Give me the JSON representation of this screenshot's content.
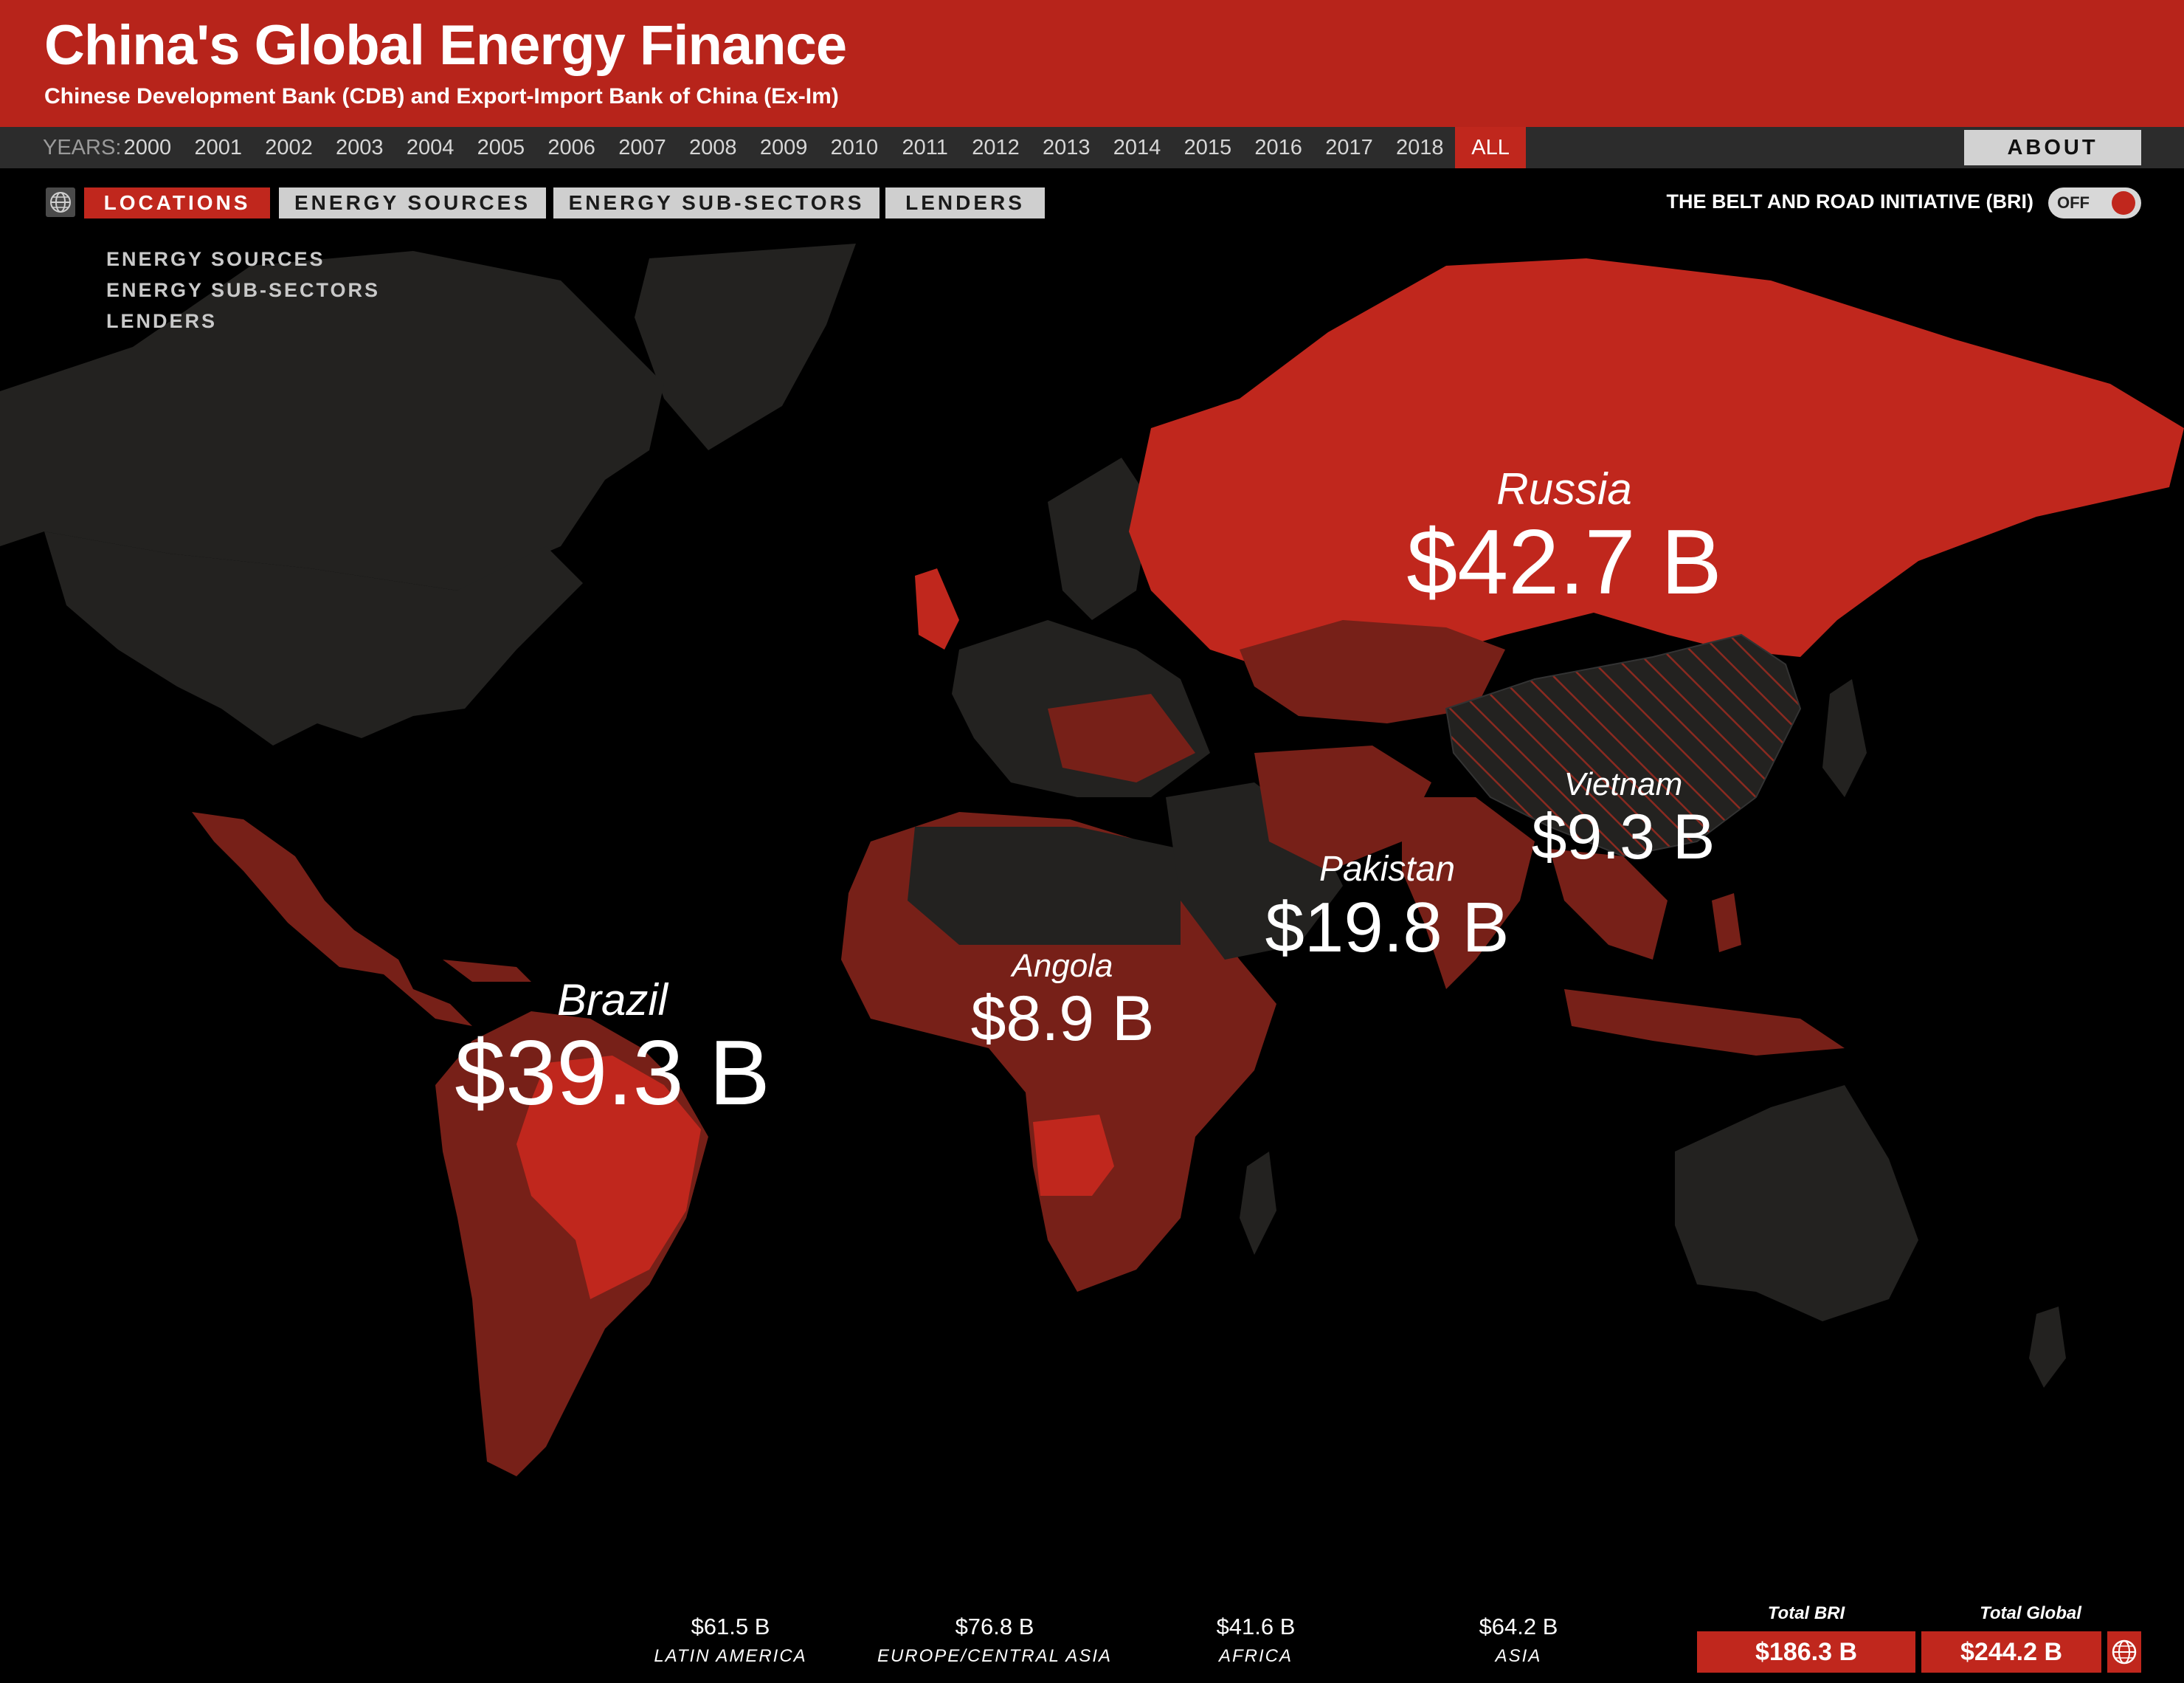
{
  "header": {
    "title": "China's Global Energy Finance",
    "subtitle": "Chinese Development Bank (CDB) and Export-Import Bank of China (Ex-Im)"
  },
  "years": {
    "label": "YEARS:",
    "items": [
      "2000",
      "2001",
      "2002",
      "2003",
      "2004",
      "2005",
      "2006",
      "2007",
      "2008",
      "2009",
      "2010",
      "2011",
      "2012",
      "2013",
      "2014",
      "2015",
      "2016",
      "2017",
      "2018",
      "ALL"
    ],
    "selected": "ALL"
  },
  "about_label": "ABOUT",
  "tabs": [
    {
      "label": "LOCATIONS",
      "active": true
    },
    {
      "label": "ENERGY SOURCES",
      "active": false
    },
    {
      "label": "ENERGY SUB-SECTORS",
      "active": false
    },
    {
      "label": "LENDERS",
      "active": false
    }
  ],
  "submenu": [
    "ENERGY SOURCES",
    "ENERGY SUB-SECTORS",
    "LENDERS"
  ],
  "bri": {
    "label": "THE BELT AND ROAD INITIATIVE (BRI)",
    "toggle": "OFF"
  },
  "map_labels": [
    {
      "name": "Russia",
      "value": "$42.7 B"
    },
    {
      "name": "Brazil",
      "value": "$39.3 B"
    },
    {
      "name": "Pakistan",
      "value": "$19.8 B"
    },
    {
      "name": "Vietnam",
      "value": "$9.3 B"
    },
    {
      "name": "Angola",
      "value": "$8.9 B"
    }
  ],
  "regions": [
    {
      "amount": "$61.5 B",
      "name": "LATIN AMERICA"
    },
    {
      "amount": "$76.8 B",
      "name": "EUROPE/CENTRAL ASIA"
    },
    {
      "amount": "$41.6 B",
      "name": "AFRICA"
    },
    {
      "amount": "$64.2 B",
      "name": "ASIA"
    }
  ],
  "totals": [
    {
      "label": "Total BRI",
      "value": "$186.3 B"
    },
    {
      "label": "Total Global",
      "value": "$244.2 B"
    }
  ],
  "colors": {
    "brand_red": "#b7241b",
    "highlight_red": "#c0271d",
    "mid_red": "#772018",
    "land_dark": "#232220",
    "ocean": "#000000"
  }
}
